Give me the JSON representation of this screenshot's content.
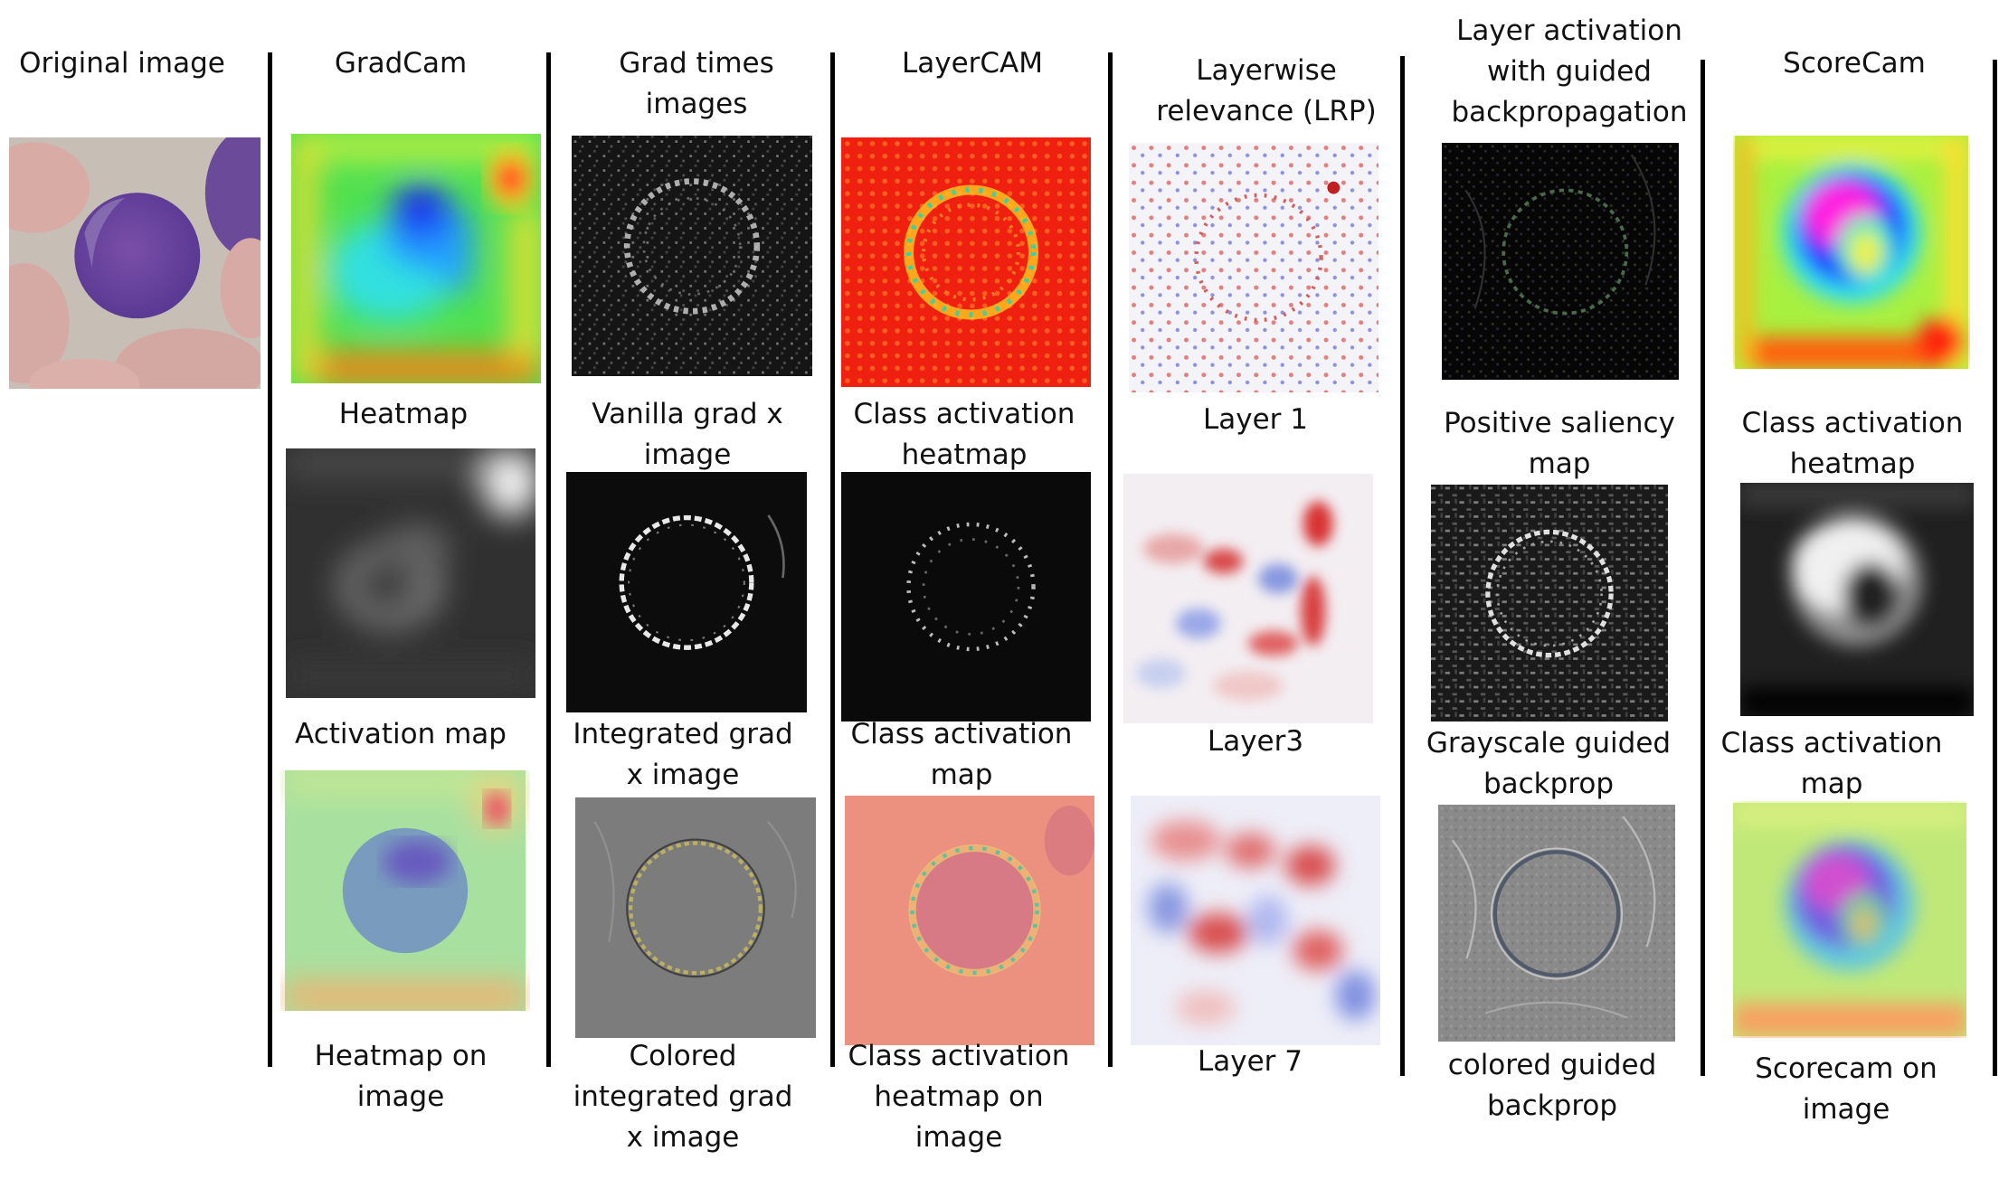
{
  "columns": [
    {
      "title": "Original image",
      "panels": [
        {
          "caption": "",
          "icon": "blood-smear-cell-photo"
        }
      ]
    },
    {
      "title": "GradCam",
      "panels": [
        {
          "caption": "Heatmap",
          "icon": "jet-heatmap"
        },
        {
          "caption": "Activation map",
          "icon": "grayscale-activation"
        },
        {
          "caption": "Heatmap on\nimage",
          "icon": "heatmap-overlay"
        }
      ]
    },
    {
      "title": "Grad times\nimages",
      "panels": [
        {
          "caption": "Vanilla grad x\nimage",
          "icon": "noisy-ring-grayscale"
        },
        {
          "caption": "Integrated grad\nx image",
          "icon": "sharp-ring-grayscale"
        },
        {
          "caption": "Colored\nintegrated grad\nx image",
          "icon": "gray-edge-ring"
        }
      ]
    },
    {
      "title": "LayerCAM",
      "panels": [
        {
          "caption": "Class activation\nheatmap",
          "icon": "red-heatmap-ring"
        },
        {
          "caption": "Class activation\nmap",
          "icon": "dotted-ring-dark"
        },
        {
          "caption": "Class activation\nheatmap on\nimage",
          "icon": "red-overlay-ring"
        }
      ]
    },
    {
      "title": "Layerwise\nrelevance (LRP)",
      "panels": [
        {
          "caption": "Layer 1",
          "icon": "lrp-speckle"
        },
        {
          "caption": "Layer3",
          "icon": "lrp-blobs"
        },
        {
          "caption": "Layer 7",
          "icon": "lrp-smooth-blobs"
        }
      ]
    },
    {
      "title": "Layer activation\nwith guided\nbackpropagation",
      "panels": [
        {
          "caption": "Positive saliency\nmap",
          "icon": "dark-saliency-ring"
        },
        {
          "caption": "Grayscale guided\nbackprop",
          "icon": "textured-ring-grayscale"
        },
        {
          "caption": "colored guided\nbackprop",
          "icon": "gray-relief-ring"
        }
      ]
    },
    {
      "title": "ScoreCam",
      "panels": [
        {
          "caption": "Class activation\nheatmap",
          "icon": "jet-donut-heatmap"
        },
        {
          "caption": "Class activation\nmap",
          "icon": "grayscale-donut"
        },
        {
          "caption": "Scorecam on\nimage",
          "icon": "donut-overlay"
        }
      ]
    }
  ]
}
